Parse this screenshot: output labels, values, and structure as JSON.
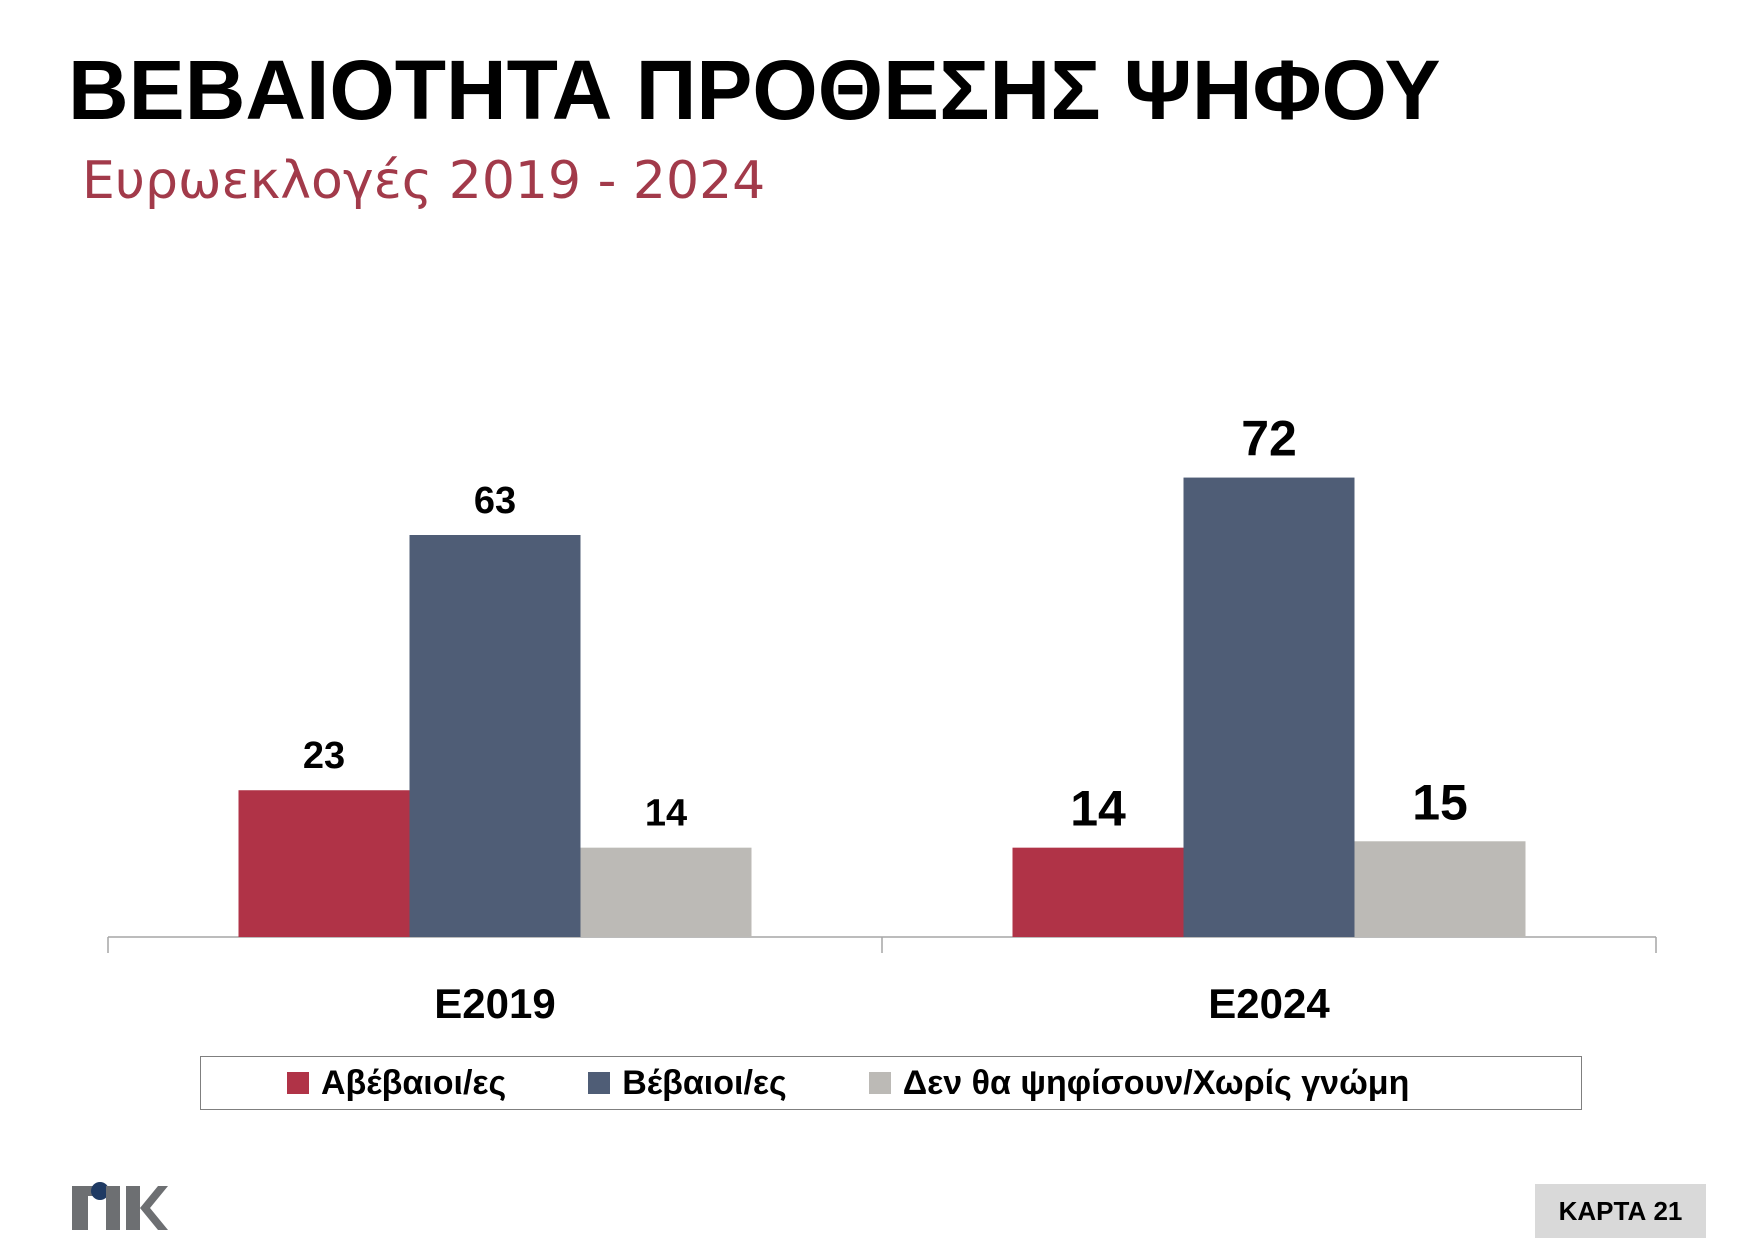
{
  "header": {
    "title": "ΒΕΒΑΙΟΤΗΤΑ ΠΡΟΘΕΣΗΣ ΨΗΦΟΥ",
    "subtitle": "Ευρωεκλογές 2019 - 2024"
  },
  "chart_data": {
    "type": "bar",
    "categories": [
      "Ε2019",
      "Ε2024"
    ],
    "series": [
      {
        "name": "Αβέβαιοι/ες",
        "values": [
          23,
          14
        ],
        "color": "#b03347"
      },
      {
        "name": "Βέβαιοι/ες",
        "values": [
          63,
          72
        ],
        "color": "#4f5d76"
      },
      {
        "name": "Δεν θα ψηφίσουν/Χωρίς γνώμη",
        "values": [
          14,
          15
        ],
        "color": "#bcbab6"
      }
    ],
    "data_labels": [
      [
        "23",
        "63",
        "14"
      ],
      [
        "14",
        "72",
        "15"
      ]
    ],
    "ylim": [
      0,
      80
    ],
    "grid": false,
    "legend_position": "bottom"
  },
  "legend": {
    "items": [
      {
        "label": "Αβέβαιοι/ες",
        "color": "#b03347"
      },
      {
        "label": "Βέβαιοι/ες",
        "color": "#4f5d76"
      },
      {
        "label": "Δεν θα ψηφίσουν/Χωρίς γνώμη",
        "color": "#bcbab6"
      }
    ]
  },
  "footer": {
    "logo_icon": "mrb-logo-icon",
    "card_label": "ΚΑΡΤΑ 21"
  }
}
